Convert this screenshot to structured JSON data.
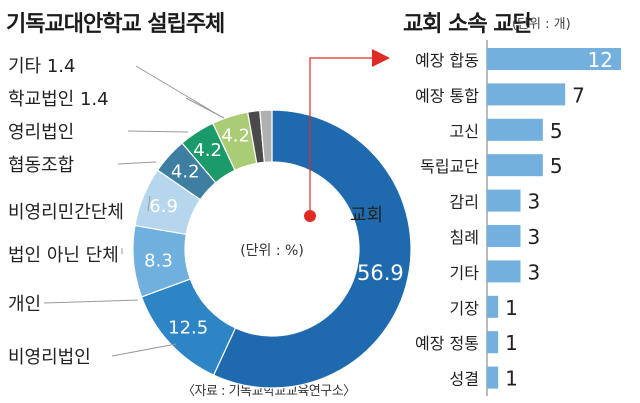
{
  "left_chart": {
    "title": "기독교대안학교 설립주체",
    "unit_label": "(단위 : %)",
    "source": "〈자료 : 기독교학교교육연구소〉"
  },
  "right_chart": {
    "title": "교회 소속 교단",
    "unit_label": "(단위 : 개)"
  },
  "colors": {
    "pie": [
      "#1f6aae",
      "#2e85c6",
      "#6fb0de",
      "#b6d6ee",
      "#3e7ea0",
      "#1b9a6a",
      "#a9cc74",
      "#4a4a4a",
      "#b0b0b0"
    ],
    "bar": "#73b0dd",
    "leader": "#999999",
    "arrow": "#e02b25",
    "dot": "#e02b25"
  },
  "chart_data": [
    {
      "type": "pie",
      "title": "기독교대안학교 설립주체",
      "unit": "(단위 : %)",
      "slices": [
        {
          "label": "교회",
          "value": 56.9
        },
        {
          "label": "비영리법인",
          "value": 12.5
        },
        {
          "label": "개인",
          "value": 8.3
        },
        {
          "label": "법인 아닌 단체",
          "value": 6.9
        },
        {
          "label": "비영리민간단체",
          "value": 4.2
        },
        {
          "label": "협동조합",
          "value": 4.2
        },
        {
          "label": "영리법인",
          "value": 4.2
        },
        {
          "label": "학교법인",
          "value": 1.4
        },
        {
          "label": "기타",
          "value": 1.4
        }
      ],
      "value_labels": [
        "56.9",
        "12.5",
        "8.3",
        "6.9",
        "4.2",
        "4.2",
        "4.2"
      ],
      "outside_labels": [
        "기타 1.4",
        "학교법인 1.4",
        "영리법인",
        "협동조합",
        "비영리민간단체",
        "법인 아닌 단체",
        "개인",
        "비영리법인",
        "교회"
      ]
    },
    {
      "type": "bar",
      "title": "교회 소속 교단",
      "unit": "(단위 : 개)",
      "orientation": "horizontal",
      "categories": [
        "예장 합동",
        "예장 통합",
        "고신",
        "독립교단",
        "감리",
        "침례",
        "기타",
        "기장",
        "예장 정통",
        "성결"
      ],
      "values": [
        12,
        7,
        5,
        5,
        3,
        3,
        3,
        1,
        1,
        1
      ],
      "value_labels": [
        "12",
        "7",
        "5",
        "5",
        "3",
        "3",
        "3",
        "1",
        "1",
        "1"
      ],
      "xlim": [
        0,
        12
      ]
    }
  ]
}
